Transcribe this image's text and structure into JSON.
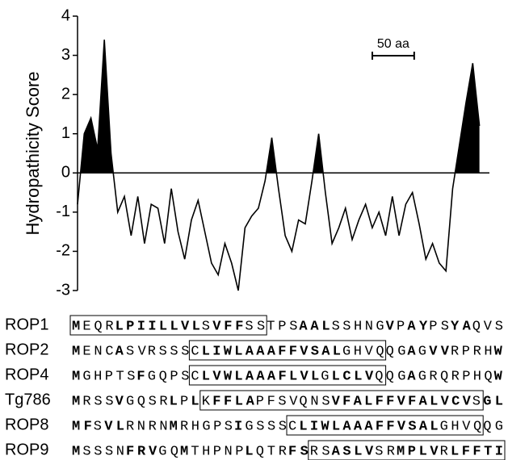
{
  "chart_data": {
    "type": "line",
    "ylabel": "Hydropathicity Score",
    "x": [
      0,
      8,
      16,
      24,
      32,
      40,
      48,
      56,
      64,
      72,
      80,
      88,
      96,
      104,
      112,
      120,
      128,
      136,
      144,
      152,
      160,
      168,
      176,
      184,
      192,
      200,
      208,
      216,
      224,
      232,
      240,
      248,
      256,
      264,
      272,
      280,
      288,
      296,
      304,
      312,
      320,
      328,
      336,
      344,
      352,
      360,
      368,
      376,
      384,
      392,
      400,
      408,
      416,
      424,
      432,
      440,
      448,
      456,
      464,
      472,
      480
    ],
    "values": [
      -0.8,
      1.0,
      1.4,
      0.6,
      3.4,
      0.5,
      -1.0,
      -0.6,
      -1.6,
      -0.6,
      -1.8,
      -0.8,
      -0.9,
      -1.8,
      -0.4,
      -1.5,
      -2.2,
      -1.2,
      -0.7,
      -1.5,
      -2.3,
      -2.6,
      -1.8,
      -2.3,
      -3.0,
      -1.4,
      -1.1,
      -0.9,
      -0.2,
      0.9,
      -0.4,
      -1.6,
      -2.0,
      -1.2,
      -1.3,
      -0.2,
      1.0,
      -0.5,
      -1.8,
      -1.4,
      -0.9,
      -1.7,
      -1.2,
      -0.8,
      -1.4,
      -1.0,
      -1.6,
      -0.6,
      -1.6,
      -0.8,
      -0.5,
      -1.3,
      -2.2,
      -1.8,
      -2.3,
      -2.5,
      -0.4,
      0.7,
      1.8,
      2.8,
      1.2
    ],
    "color": "#000000",
    "fill_positive": true,
    "xlim": [
      0,
      490
    ],
    "ylim": [
      -3,
      4
    ],
    "yticks": [
      -3,
      -2,
      -1,
      0,
      1,
      2,
      3,
      4
    ],
    "scale_bar": {
      "label": "50 aa",
      "length": 50
    }
  },
  "alignment": [
    {
      "name": "ROP1",
      "segments": [
        {
          "text": "M",
          "bold": true,
          "boxed": true
        },
        {
          "text": "EQR",
          "bold": false,
          "boxed": true
        },
        {
          "text": "LPIILLVL",
          "bold": true,
          "boxed": true
        },
        {
          "text": "S",
          "bold": false,
          "boxed": true
        },
        {
          "text": "VFF",
          "bold": true,
          "boxed": true
        },
        {
          "text": "SS",
          "bold": false,
          "boxed": true
        },
        {
          "text": "TPS",
          "bold": false,
          "boxed": false
        },
        {
          "text": "AAL",
          "bold": true,
          "boxed": false
        },
        {
          "text": "SSHNG",
          "bold": false,
          "boxed": false
        },
        {
          "text": "V",
          "bold": true,
          "boxed": false
        },
        {
          "text": "P",
          "bold": false,
          "boxed": false
        },
        {
          "text": "AY",
          "bold": true,
          "boxed": false
        },
        {
          "text": "PS",
          "bold": false,
          "boxed": false
        },
        {
          "text": "YA",
          "bold": true,
          "boxed": false
        },
        {
          "text": "QVS",
          "bold": false,
          "boxed": false
        }
      ]
    },
    {
      "name": "ROP2",
      "segments": [
        {
          "text": "M",
          "bold": true,
          "boxed": false
        },
        {
          "text": "ENC",
          "bold": false,
          "boxed": false
        },
        {
          "text": "A",
          "bold": true,
          "boxed": false
        },
        {
          "text": "SV",
          "bold": false,
          "boxed": false
        },
        {
          "text": "RSSS",
          "bold": false,
          "boxed": false
        },
        {
          "text": "C",
          "bold": false,
          "boxed": true
        },
        {
          "text": "LIWLAAAFFVSAL",
          "bold": true,
          "boxed": true
        },
        {
          "text": "GHVQ",
          "bold": false,
          "boxed": true
        },
        {
          "text": "QG",
          "bold": false,
          "boxed": false
        },
        {
          "text": "A",
          "bold": true,
          "boxed": false
        },
        {
          "text": "G",
          "bold": false,
          "boxed": false
        },
        {
          "text": "VV",
          "bold": true,
          "boxed": false
        },
        {
          "text": "RPRH",
          "bold": false,
          "boxed": false
        },
        {
          "text": "W",
          "bold": true,
          "boxed": false
        }
      ]
    },
    {
      "name": "ROP4",
      "segments": [
        {
          "text": "M",
          "bold": true,
          "boxed": false
        },
        {
          "text": "GHPTS",
          "bold": false,
          "boxed": false
        },
        {
          "text": "F",
          "bold": true,
          "boxed": false
        },
        {
          "text": "GQPS",
          "bold": false,
          "boxed": false
        },
        {
          "text": "C",
          "bold": false,
          "boxed": true
        },
        {
          "text": "LVWLAAAFLVL",
          "bold": true,
          "boxed": true
        },
        {
          "text": "G",
          "bold": false,
          "boxed": true
        },
        {
          "text": "LCLV",
          "bold": true,
          "boxed": true
        },
        {
          "text": "Q",
          "bold": false,
          "boxed": true
        },
        {
          "text": "QG",
          "bold": false,
          "boxed": false
        },
        {
          "text": "A",
          "bold": true,
          "boxed": false
        },
        {
          "text": "GRQRPHQ",
          "bold": false,
          "boxed": false
        },
        {
          "text": "W",
          "bold": true,
          "boxed": false
        }
      ]
    },
    {
      "name": "Tg786",
      "segments": [
        {
          "text": "M",
          "bold": true,
          "boxed": false
        },
        {
          "text": "RSS",
          "bold": false,
          "boxed": false
        },
        {
          "text": "V",
          "bold": true,
          "boxed": false
        },
        {
          "text": "GQSR",
          "bold": false,
          "boxed": false
        },
        {
          "text": "L",
          "bold": true,
          "boxed": false
        },
        {
          "text": "P",
          "bold": false,
          "boxed": false
        },
        {
          "text": "L",
          "bold": true,
          "boxed": false
        },
        {
          "text": "K",
          "bold": false,
          "boxed": true
        },
        {
          "text": "FFLA",
          "bold": true,
          "boxed": true
        },
        {
          "text": "PFSV",
          "bold": false,
          "boxed": true
        },
        {
          "text": "QNS",
          "bold": false,
          "boxed": true
        },
        {
          "text": "VFALFFVFALVCV",
          "bold": true,
          "boxed": true
        },
        {
          "text": "S",
          "bold": false,
          "boxed": true
        },
        {
          "text": "GL",
          "bold": true,
          "boxed": false
        }
      ]
    },
    {
      "name": "ROP8",
      "segments": [
        {
          "text": "MF",
          "bold": true,
          "boxed": false
        },
        {
          "text": "S",
          "bold": false,
          "boxed": false
        },
        {
          "text": "VL",
          "bold": true,
          "boxed": false
        },
        {
          "text": "RNRN",
          "bold": false,
          "boxed": false
        },
        {
          "text": "M",
          "bold": true,
          "boxed": false
        },
        {
          "text": "RHGPS",
          "bold": false,
          "boxed": false
        },
        {
          "text": "I",
          "bold": true,
          "boxed": false
        },
        {
          "text": "GSSS",
          "bold": false,
          "boxed": false
        },
        {
          "text": "C",
          "bold": false,
          "boxed": true
        },
        {
          "text": "LIWLAAAFFVSAL",
          "bold": true,
          "boxed": true
        },
        {
          "text": "GHVQ",
          "bold": false,
          "boxed": true
        },
        {
          "text": "QG",
          "bold": false,
          "boxed": false
        }
      ]
    },
    {
      "name": "ROP9",
      "segments": [
        {
          "text": "M",
          "bold": true,
          "boxed": false
        },
        {
          "text": "SSSN",
          "bold": false,
          "boxed": false
        },
        {
          "text": "FRV",
          "bold": true,
          "boxed": false
        },
        {
          "text": "GQ",
          "bold": false,
          "boxed": false
        },
        {
          "text": "M",
          "bold": true,
          "boxed": false
        },
        {
          "text": "THPNP",
          "bold": false,
          "boxed": false
        },
        {
          "text": "L",
          "bold": true,
          "boxed": false
        },
        {
          "text": "QTR",
          "bold": false,
          "boxed": false
        },
        {
          "text": "FS",
          "bold": true,
          "boxed": false
        },
        {
          "text": "RS",
          "bold": false,
          "boxed": true
        },
        {
          "text": "ASLV",
          "bold": true,
          "boxed": true
        },
        {
          "text": "SR",
          "bold": false,
          "boxed": true
        },
        {
          "text": "MPLV",
          "bold": true,
          "boxed": true
        },
        {
          "text": "R",
          "bold": false,
          "boxed": true
        },
        {
          "text": "LFFTI",
          "bold": true,
          "boxed": true
        }
      ]
    }
  ]
}
